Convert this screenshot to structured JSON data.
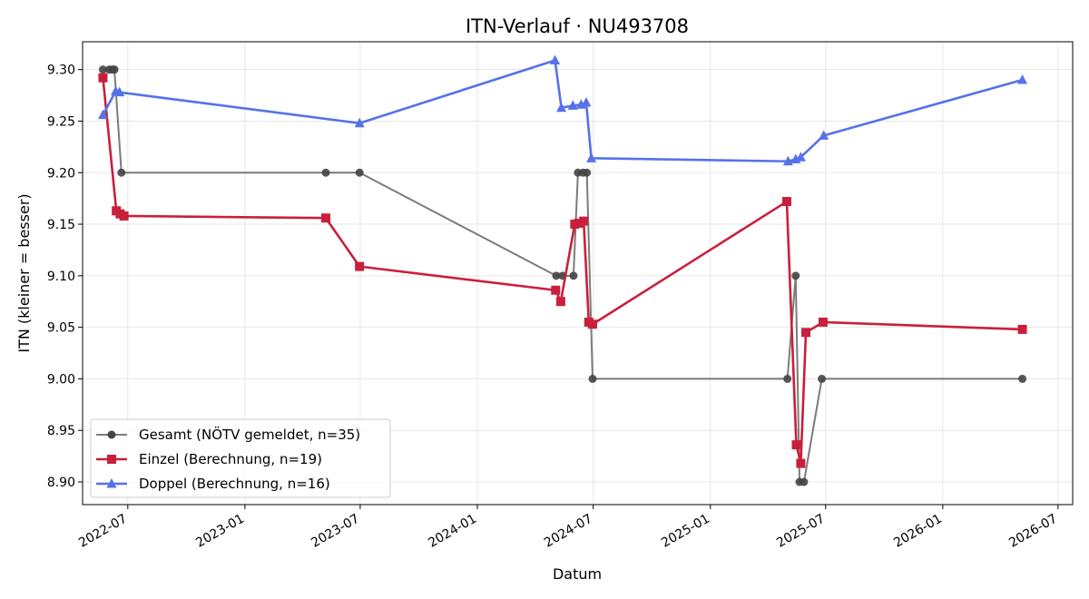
{
  "chart_data": {
    "type": "line",
    "title": "ITN-Verlauf · NU493708",
    "xlabel": "Datum",
    "ylabel": "ITN  (kleiner = besser)",
    "xlim": [
      "2022-04-21",
      "2026-07-24"
    ],
    "ylim": [
      8.878,
      9.327
    ],
    "x_ticks": [
      "2022-07-01",
      "2023-01-01",
      "2023-07-01",
      "2024-01-01",
      "2024-07-01",
      "2025-01-01",
      "2025-07-01",
      "2026-01-01",
      "2026-07-01"
    ],
    "x_tick_labels": [
      "2022-07",
      "2023-01",
      "2023-07",
      "2024-01",
      "2024-07",
      "2025-01",
      "2025-07",
      "2026-01",
      "2026-07"
    ],
    "y_ticks": [
      8.9,
      8.95,
      9.0,
      9.05,
      9.1,
      9.15,
      9.2,
      9.25,
      9.3
    ],
    "y_tick_labels": [
      "8.90",
      "8.95",
      "9.00",
      "9.05",
      "9.10",
      "9.15",
      "9.20",
      "9.25",
      "9.30"
    ],
    "grid": true,
    "legend_position": "lower-left",
    "series": [
      {
        "name": "Gesamt (NÖTV gemeldet, n=35)",
        "color": "#5a5a5a",
        "marker": "circle",
        "points": [
          [
            "2022-05-23",
            9.3
          ],
          [
            "2022-06-02",
            9.3
          ],
          [
            "2022-06-07",
            9.3
          ],
          [
            "2022-06-10",
            9.3
          ],
          [
            "2022-06-21",
            9.2
          ],
          [
            "2023-05-08",
            9.2
          ],
          [
            "2023-06-30",
            9.2
          ],
          [
            "2024-05-04",
            9.1
          ],
          [
            "2024-05-14",
            9.1
          ],
          [
            "2024-05-31",
            9.1
          ],
          [
            "2024-06-07",
            9.2
          ],
          [
            "2024-06-15",
            9.2
          ],
          [
            "2024-06-21",
            9.2
          ],
          [
            "2024-06-30",
            9.0
          ],
          [
            "2025-05-02",
            9.0
          ],
          [
            "2025-05-15",
            9.1
          ],
          [
            "2025-05-21",
            8.9
          ],
          [
            "2025-05-28",
            8.9
          ],
          [
            "2025-06-25",
            9.0
          ],
          [
            "2026-05-06",
            9.0
          ]
        ]
      },
      {
        "name": "Einzel (Berechnung, n=19)",
        "color": "#c8203c",
        "marker": "square",
        "points": [
          [
            "2022-05-23",
            9.292
          ],
          [
            "2022-06-13",
            9.163
          ],
          [
            "2022-06-19",
            9.16
          ],
          [
            "2022-06-25",
            9.158
          ],
          [
            "2023-05-08",
            9.156
          ],
          [
            "2023-06-30",
            9.109
          ],
          [
            "2024-05-03",
            9.086
          ],
          [
            "2024-05-11",
            9.075
          ],
          [
            "2024-06-02",
            9.15
          ],
          [
            "2024-06-08",
            9.151
          ],
          [
            "2024-06-16",
            9.153
          ],
          [
            "2024-06-24",
            9.055
          ],
          [
            "2024-06-30",
            9.053
          ],
          [
            "2025-05-01",
            9.172
          ],
          [
            "2025-05-16",
            8.936
          ],
          [
            "2025-05-23",
            8.918
          ],
          [
            "2025-05-31",
            9.045
          ],
          [
            "2025-06-27",
            9.055
          ],
          [
            "2026-05-06",
            9.048
          ]
        ]
      },
      {
        "name": "Doppel (Berechnung, n=16)",
        "color": "#5572e8",
        "marker": "triangle",
        "points": [
          [
            "2022-05-23",
            9.256
          ],
          [
            "2022-06-12",
            9.279
          ],
          [
            "2022-06-18",
            9.278
          ],
          [
            "2023-06-30",
            9.248
          ],
          [
            "2024-05-02",
            9.309
          ],
          [
            "2024-05-12",
            9.263
          ],
          [
            "2024-05-30",
            9.265
          ],
          [
            "2024-06-12",
            9.266
          ],
          [
            "2024-06-20",
            9.268
          ],
          [
            "2024-06-28",
            9.214
          ],
          [
            "2025-05-03",
            9.211
          ],
          [
            "2025-05-15",
            9.213
          ],
          [
            "2025-05-23",
            9.215
          ],
          [
            "2025-06-28",
            9.236
          ],
          [
            "2026-05-06",
            9.29
          ]
        ]
      }
    ]
  }
}
